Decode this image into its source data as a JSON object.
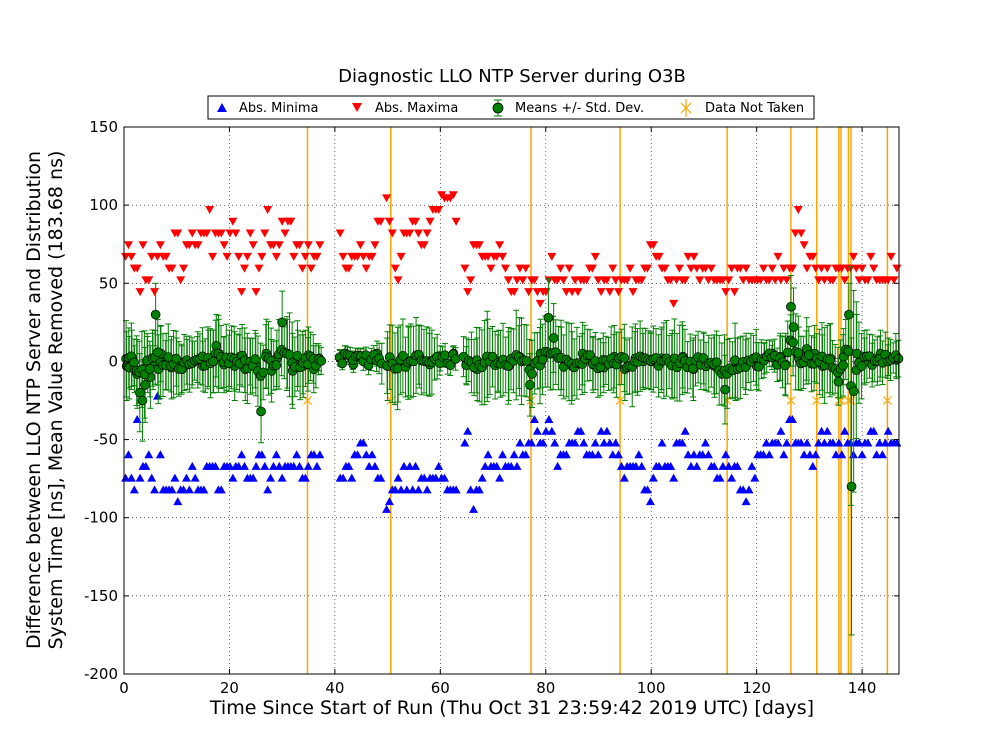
{
  "chart_data": {
    "type": "scatter",
    "title": "Diagnostic LLO NTP Server during O3B",
    "xlabel": "Time Since Start of Run (Thu Oct 31 23:59:42 2019 UTC) [days]",
    "ylabel_line1": "Difference between LLO NTP Server and Distribution",
    "ylabel_line2": "System Time [ns], Mean Value Removed (183.68 ns)",
    "xlim": [
      0,
      147
    ],
    "ylim": [
      -200,
      150
    ],
    "xticks": [
      0,
      20,
      40,
      60,
      80,
      100,
      120,
      140
    ],
    "yticks": [
      -200,
      -150,
      -100,
      -50,
      0,
      50,
      100,
      150
    ],
    "grid": true,
    "legend_position": "top",
    "legend": [
      {
        "key": "minima",
        "label": "Abs. Minima",
        "color": "#0000ff",
        "marker": "triangle-up"
      },
      {
        "key": "maxima",
        "label": "Abs. Maxima",
        "color": "#ff0000",
        "marker": "triangle-down"
      },
      {
        "key": "means",
        "label": "Means +/- Std. Dev.",
        "color": "#008000",
        "marker": "circle-errorbar"
      },
      {
        "key": "not_taken",
        "label": "Data Not Taken",
        "color": "#ffa500",
        "marker": "x-line"
      }
    ],
    "data_not_taken_days": [
      34.8,
      50.6,
      77.2,
      94.1,
      114.4,
      126.5,
      131.4,
      135.6,
      136.0,
      137.4,
      137.9,
      144.8
    ],
    "segments": [
      [
        0,
        37.3
      ],
      [
        40.8,
        49.0
      ],
      [
        49.5,
        63.0
      ],
      [
        64.2,
        92.0
      ],
      [
        92.0,
        123.6
      ],
      [
        123.8,
        147
      ]
    ],
    "series": [
      {
        "name": "Means +/- Std. Dev.",
        "x": [
          0.5,
          1.0,
          1.5,
          2.0,
          2.5,
          3.0,
          3.5,
          4.0,
          4.5,
          5.0,
          5.5,
          6.0,
          6.5,
          7.0,
          8.0,
          9.0,
          10.0,
          11.0,
          12.0,
          13.0,
          14.0,
          15.0,
          16.0,
          17.0,
          17.5,
          18.0,
          19.0,
          20.0,
          21.0,
          22.0,
          23.0,
          24.0,
          25.0,
          26.0,
          27.0,
          28.0,
          29.0,
          30.0,
          31.0,
          32.0,
          33.0,
          34.0,
          35.0,
          36.0,
          37.0,
          41.0,
          42.0,
          43.5,
          45.5,
          48.0,
          50.0,
          52.0,
          54.0,
          56.0,
          58.0,
          60.0,
          62.5,
          65.0,
          67.0,
          69.0,
          71.0,
          73.0,
          75.0,
          77.0,
          79.0,
          80.5,
          81.5,
          83.0,
          85.0,
          87.0,
          89.0,
          91.0,
          93.0,
          95.0,
          97.0,
          98.5,
          100.0,
          102.0,
          104.0,
          106.0,
          108.0,
          110.0,
          112.0,
          114.0,
          116.0,
          118.0,
          120.0,
          121.5,
          123.0,
          124.5,
          125.5,
          126.5,
          127.0,
          128.0,
          129.5,
          131.0,
          132.5,
          134.0,
          135.5,
          136.5,
          137.5,
          138.0,
          139.0,
          140.5,
          142.0,
          143.5,
          145.0,
          146.5
        ],
        "y": [
          -3,
          -4,
          2,
          -5,
          -8,
          -20,
          -25,
          -15,
          -2,
          -10,
          0,
          30,
          -5,
          5,
          0,
          -4,
          -3,
          -5,
          -2,
          -1,
          1,
          -3,
          2,
          0,
          10,
          5,
          -2,
          2,
          -3,
          3,
          -5,
          -3,
          -2,
          -32,
          5,
          -6,
          2,
          25,
          5,
          -6,
          2,
          -3,
          4,
          -5,
          2,
          2,
          5,
          -2,
          3,
          5,
          -3,
          -2,
          0,
          3,
          -2,
          2,
          5,
          0,
          -5,
          2,
          0,
          -3,
          3,
          -15,
          5,
          28,
          15,
          2,
          -3,
          5,
          -2,
          -4,
          3,
          -5,
          2,
          0,
          0,
          2,
          -2,
          3,
          -5,
          0,
          -3,
          -18,
          -5,
          0,
          -3,
          2,
          5,
          3,
          -2,
          35,
          22,
          2,
          8,
          5,
          -3,
          2,
          -13,
          3,
          30,
          -80,
          5,
          0,
          2,
          5,
          3,
          1
        ],
        "err": [
          22,
          20,
          18,
          15,
          22,
          25,
          26,
          24,
          18,
          20,
          18,
          20,
          22,
          18,
          18,
          20,
          18,
          15,
          16,
          14,
          18,
          16,
          18,
          20,
          20,
          22,
          18,
          18,
          22,
          18,
          20,
          18,
          20,
          20,
          22,
          20,
          18,
          20,
          22,
          24,
          18,
          20,
          18,
          15,
          8,
          5,
          5,
          5,
          5,
          8,
          22,
          24,
          22,
          20,
          20,
          8,
          5,
          15,
          20,
          25,
          20,
          22,
          25,
          20,
          22,
          25,
          22,
          20,
          22,
          20,
          18,
          16,
          20,
          20,
          22,
          18,
          18,
          20,
          22,
          20,
          20,
          18,
          20,
          22,
          20,
          18,
          15,
          10,
          8,
          15,
          20,
          20,
          25,
          20,
          20,
          18,
          20,
          22,
          15,
          18,
          20,
          95,
          25,
          15,
          15,
          15,
          12,
          12
        ]
      },
      {
        "name": "Abs. Maxima",
        "x": [
          0.5,
          1.0,
          1.5,
          2.0,
          2.5,
          3.0,
          3.5,
          4.0,
          4.5,
          5.0,
          5.5,
          6.0,
          6.5,
          7.0,
          8.0,
          9.0,
          10.0,
          11.0,
          12.0,
          13.0,
          14.0,
          15.0,
          15.5,
          16.0,
          17.0,
          17.5,
          18.0,
          19.0,
          20.0,
          21.0,
          22.0,
          23.0,
          24.0,
          25.0,
          26.0,
          27.0,
          28.0,
          29.0,
          30.0,
          31.0,
          32.0,
          33.0,
          34.0,
          35.0,
          36.0,
          37.0,
          41.0,
          42.0,
          43.5,
          45.5,
          48.0,
          50.0,
          51.0,
          52.0,
          54.0,
          56.0,
          58.0,
          60.0,
          62.5,
          65.0,
          67.0,
          69.0,
          71.0,
          73.0,
          75.0,
          77.0,
          79.0,
          80.5,
          81.5,
          83.0,
          85.0,
          87.0,
          89.0,
          91.0,
          93.0,
          95.0,
          97.0,
          98.5,
          100.0,
          102.0,
          104.0,
          106.0,
          108.0,
          110.0,
          112.0,
          114.0,
          116.0,
          118.0,
          120.0,
          123.0,
          124.5,
          125.5,
          126.5,
          127.0,
          128.0,
          129.5,
          131.0,
          132.5,
          134.0,
          135.5,
          136.5,
          137.5,
          138.0,
          139.0,
          140.5,
          142.0,
          143.5,
          145.0,
          146.5
        ],
        "y": [
          70,
          85,
          62,
          70,
          55,
          40,
          78,
          55,
          40,
          70,
          62,
          50,
          70,
          85,
          62,
          70,
          85,
          48,
          85,
          70,
          85,
          92,
          70,
          100,
          62,
          78,
          85,
          70,
          78,
          100,
          48,
          62,
          85,
          48,
          62,
          100,
          78,
          70,
          85,
          85,
          78,
          70,
          55,
          78,
          62,
          78,
          78,
          48,
          70,
          62,
          85,
          100,
          70,
          62,
          85,
          78,
          92,
          107,
          107,
          48,
          78,
          62,
          70,
          48,
          55,
          55,
          40,
          55,
          62,
          55,
          48,
          55,
          62,
          48,
          55,
          48,
          55,
          62,
          70,
          62,
          48,
          55,
          62,
          55,
          55,
          48,
          55,
          55,
          55,
          62,
          62,
          55,
          48,
          70,
          107,
          55,
          62,
          55,
          62,
          55,
          48,
          62,
          55,
          62,
          55,
          62,
          55,
          55,
          62
        ]
      },
      {
        "name": "Abs. Minima",
        "x": [
          0.5,
          1.0,
          1.5,
          2.0,
          2.5,
          3.0,
          3.5,
          4.0,
          4.5,
          5.0,
          5.5,
          6.0,
          6.5,
          7.0,
          8.0,
          9.0,
          10.0,
          11.0,
          12.0,
          13.0,
          14.0,
          15.0,
          16.0,
          17.0,
          18.0,
          19.0,
          20.0,
          21.0,
          22.0,
          23.0,
          24.0,
          25.0,
          26.0,
          27.0,
          28.0,
          29.0,
          30.0,
          31.0,
          32.0,
          33.0,
          34.0,
          35.0,
          36.0,
          37.0,
          41.0,
          42.0,
          43.5,
          45.5,
          48.0,
          50.0,
          51.0,
          52.0,
          54.0,
          56.0,
          58.0,
          60.0,
          62.5,
          65.0,
          66.0,
          67.0,
          69.0,
          71.0,
          73.0,
          75.0,
          77.0,
          79.0,
          80.5,
          81.5,
          83.0,
          85.0,
          87.0,
          89.0,
          91.0,
          93.0,
          95.0,
          97.0,
          98.5,
          100.0,
          102.0,
          104.0,
          106.0,
          108.0,
          110.0,
          112.0,
          114.0,
          116.0,
          118.0,
          120.0,
          123.0,
          124.5,
          125.5,
          126.5,
          127.0,
          128.0,
          129.5,
          131.0,
          132.5,
          134.0,
          135.5,
          136.5,
          137.5,
          138.0,
          139.0,
          140.5,
          142.0,
          143.5,
          145.0,
          146.5
        ],
        "y": [
          -80,
          -65,
          -72,
          -80,
          -45,
          -72,
          -65,
          -80,
          -50,
          -72,
          -65,
          -80,
          -12,
          -72,
          -80,
          -72,
          -87,
          -72,
          -80,
          -72,
          -80,
          -80,
          -72,
          -56,
          -80,
          -72,
          -65,
          -80,
          -56,
          -72,
          -80,
          -65,
          -50,
          -80,
          -72,
          -65,
          -80,
          -72,
          -65,
          -65,
          -72,
          -65,
          -65,
          -65,
          -80,
          -65,
          -65,
          -56,
          -72,
          -93,
          -87,
          -80,
          -72,
          -80,
          -72,
          -65,
          -87,
          -42,
          -93,
          -80,
          -65,
          -72,
          -65,
          -56,
          -45,
          -50,
          -42,
          -50,
          -65,
          -56,
          -50,
          -65,
          -50,
          -56,
          -72,
          -65,
          -72,
          -87,
          -56,
          -72,
          -50,
          -65,
          -56,
          -72,
          -65,
          -65,
          -87,
          -65,
          -50,
          -50,
          -56,
          -42,
          -50,
          -50,
          -56,
          -65,
          -50,
          -56,
          -50,
          -50,
          -56,
          -56,
          -50,
          -56,
          -50,
          -56,
          -50,
          -50
        ]
      }
    ]
  }
}
